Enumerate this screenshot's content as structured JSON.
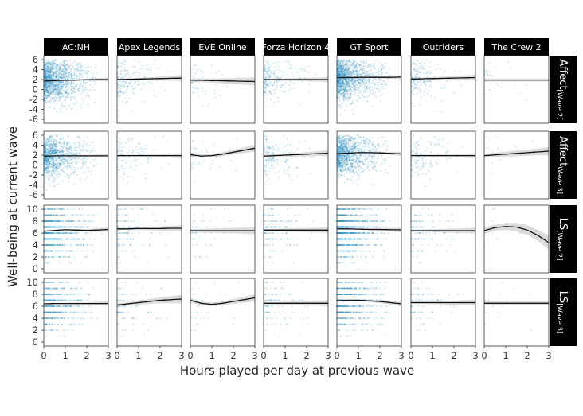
{
  "chart_data": {
    "type": "scatter",
    "xlabel": "Hours played per day at previous wave",
    "ylabel": "Well-being at current wave",
    "columns": [
      "AC:NH",
      "Apex Legends",
      "EVE Online",
      "Forza Horizon 4",
      "GT Sport",
      "Outriders",
      "The Crew 2"
    ],
    "rows": [
      {
        "label_main": "Affect",
        "label_sub": "[Wave 2]",
        "ylim": [
          -6,
          6
        ],
        "yticks": [
          -6,
          -4,
          -2,
          0,
          2,
          4,
          6
        ]
      },
      {
        "label_main": "Affect",
        "label_sub": "Wave 3]",
        "ylim": [
          -6,
          6
        ],
        "yticks": [
          -6,
          -4,
          -2,
          0,
          2,
          4,
          6
        ]
      },
      {
        "label_main": "LS",
        "label_sub": "[Wave 2]",
        "ylim": [
          0,
          10
        ],
        "yticks": [
          0,
          2,
          4,
          6,
          8,
          10
        ]
      },
      {
        "label_main": "LS",
        "label_sub": "[Wave 3]",
        "ylim": [
          0,
          10
        ],
        "yticks": [
          0,
          2,
          4,
          6,
          8,
          10
        ]
      }
    ],
    "xlim": [
      0,
      3
    ],
    "xticks": [
      0,
      1,
      2,
      3
    ],
    "x_grid": [
      0,
      0.5,
      1,
      1.5,
      2,
      2.5,
      3
    ],
    "density": [
      [
        1400,
        180,
        60,
        220,
        1400,
        170,
        25
      ],
      [
        1100,
        110,
        45,
        170,
        1200,
        130,
        15
      ],
      [
        900,
        130,
        45,
        160,
        1100,
        120,
        20
      ],
      [
        600,
        90,
        35,
        110,
        800,
        90,
        15
      ]
    ],
    "trend": [
      [
        [
          1.7,
          1.8,
          1.85,
          1.9,
          1.95,
          2.0,
          2.0
        ],
        [
          2.0,
          2.05,
          2.1,
          2.15,
          2.2,
          2.25,
          2.3
        ],
        [
          1.9,
          1.85,
          1.8,
          1.75,
          1.7,
          1.65,
          1.6
        ],
        [
          2.0,
          2.0,
          2.0,
          2.0,
          2.0,
          2.0,
          2.0
        ],
        [
          2.4,
          2.4,
          2.45,
          2.45,
          2.45,
          2.45,
          2.5
        ],
        [
          2.1,
          2.15,
          2.2,
          2.25,
          2.3,
          2.35,
          2.4
        ],
        [
          1.9,
          1.9,
          1.9,
          1.9,
          1.9,
          1.9,
          1.9
        ]
      ],
      [
        [
          1.8,
          1.85,
          1.85,
          1.85,
          1.85,
          1.85,
          1.85
        ],
        [
          1.9,
          1.9,
          1.9,
          1.9,
          1.9,
          1.9,
          1.9
        ],
        [
          2.1,
          1.8,
          1.9,
          2.2,
          2.6,
          3.0,
          3.4
        ],
        [
          1.8,
          1.9,
          2.0,
          2.1,
          2.2,
          2.3,
          2.4
        ],
        [
          2.3,
          2.4,
          2.5,
          2.5,
          2.45,
          2.35,
          2.25
        ],
        [
          1.9,
          1.9,
          1.9,
          1.9,
          1.9,
          1.9,
          1.9
        ],
        [
          1.9,
          2.05,
          2.2,
          2.35,
          2.5,
          2.65,
          2.8
        ]
      ],
      [
        [
          6.3,
          6.45,
          6.55,
          6.5,
          6.45,
          6.5,
          6.6
        ],
        [
          6.7,
          6.7,
          6.75,
          6.75,
          6.75,
          6.8,
          6.8
        ],
        [
          6.4,
          6.4,
          6.4,
          6.4,
          6.4,
          6.4,
          6.4
        ],
        [
          6.5,
          6.5,
          6.5,
          6.5,
          6.5,
          6.5,
          6.5
        ],
        [
          6.7,
          6.7,
          6.65,
          6.6,
          6.6,
          6.55,
          6.55
        ],
        [
          6.4,
          6.4,
          6.4,
          6.4,
          6.4,
          6.4,
          6.4
        ],
        [
          6.4,
          6.9,
          7.1,
          7.0,
          6.5,
          5.6,
          4.4
        ]
      ],
      [
        [
          6.4,
          6.45,
          6.45,
          6.45,
          6.45,
          6.45,
          6.45
        ],
        [
          6.2,
          6.4,
          6.6,
          6.8,
          7.0,
          7.1,
          7.2
        ],
        [
          7.0,
          6.5,
          6.3,
          6.5,
          6.8,
          7.1,
          7.4
        ],
        [
          6.5,
          6.5,
          6.5,
          6.5,
          6.5,
          6.5,
          6.5
        ],
        [
          6.9,
          7.0,
          7.0,
          6.9,
          6.8,
          6.6,
          6.4
        ],
        [
          6.6,
          6.6,
          6.6,
          6.6,
          6.6,
          6.6,
          6.6
        ],
        [
          6.5,
          6.5,
          6.5,
          6.5,
          6.5,
          6.5,
          6.5
        ]
      ]
    ],
    "ribbon_halfwidth": [
      [
        [
          0.1,
          0.1,
          0.1,
          0.15,
          0.2,
          0.3,
          0.4
        ],
        [
          0.2,
          0.2,
          0.25,
          0.3,
          0.4,
          0.5,
          0.6
        ],
        [
          0.3,
          0.35,
          0.4,
          0.5,
          0.6,
          0.7,
          0.8
        ],
        [
          0.2,
          0.2,
          0.25,
          0.3,
          0.35,
          0.4,
          0.5
        ],
        [
          0.1,
          0.1,
          0.1,
          0.15,
          0.2,
          0.3,
          0.4
        ],
        [
          0.2,
          0.25,
          0.3,
          0.35,
          0.4,
          0.5,
          0.6
        ],
        [
          0.3,
          0.3,
          0.3,
          0.3,
          0.3,
          0.3,
          0.3
        ]
      ],
      [
        [
          0.1,
          0.1,
          0.1,
          0.15,
          0.2,
          0.3,
          0.4
        ],
        [
          0.2,
          0.2,
          0.25,
          0.3,
          0.35,
          0.4,
          0.5
        ],
        [
          0.4,
          0.35,
          0.35,
          0.4,
          0.45,
          0.55,
          0.7
        ],
        [
          0.3,
          0.3,
          0.3,
          0.35,
          0.4,
          0.5,
          0.6
        ],
        [
          0.1,
          0.1,
          0.1,
          0.15,
          0.2,
          0.3,
          0.4
        ],
        [
          0.2,
          0.2,
          0.25,
          0.3,
          0.35,
          0.4,
          0.5
        ],
        [
          0.4,
          0.45,
          0.5,
          0.55,
          0.6,
          0.7,
          0.8
        ]
      ],
      [
        [
          0.1,
          0.1,
          0.1,
          0.15,
          0.2,
          0.3,
          0.4
        ],
        [
          0.2,
          0.2,
          0.25,
          0.3,
          0.35,
          0.4,
          0.5
        ],
        [
          0.3,
          0.3,
          0.35,
          0.4,
          0.45,
          0.5,
          0.6
        ],
        [
          0.2,
          0.2,
          0.25,
          0.3,
          0.35,
          0.4,
          0.5
        ],
        [
          0.1,
          0.1,
          0.1,
          0.15,
          0.2,
          0.3,
          0.4
        ],
        [
          0.2,
          0.2,
          0.25,
          0.3,
          0.35,
          0.4,
          0.5
        ],
        [
          0.5,
          0.5,
          0.6,
          0.7,
          0.8,
          0.9,
          1.2
        ]
      ],
      [
        [
          0.1,
          0.1,
          0.1,
          0.15,
          0.2,
          0.3,
          0.4
        ],
        [
          0.3,
          0.3,
          0.35,
          0.4,
          0.5,
          0.6,
          0.7
        ],
        [
          0.4,
          0.3,
          0.3,
          0.35,
          0.4,
          0.5,
          0.6
        ],
        [
          0.2,
          0.2,
          0.25,
          0.3,
          0.35,
          0.4,
          0.5
        ],
        [
          0.1,
          0.1,
          0.15,
          0.2,
          0.25,
          0.35,
          0.45
        ],
        [
          0.2,
          0.2,
          0.25,
          0.3,
          0.35,
          0.4,
          0.5
        ],
        [
          0.3,
          0.3,
          0.3,
          0.3,
          0.3,
          0.3,
          0.3
        ]
      ]
    ],
    "point_color": "#2b8cbe",
    "trend_color": "#111111",
    "ribbon_color": "#9a9a9a",
    "strip_color": "#000000"
  }
}
